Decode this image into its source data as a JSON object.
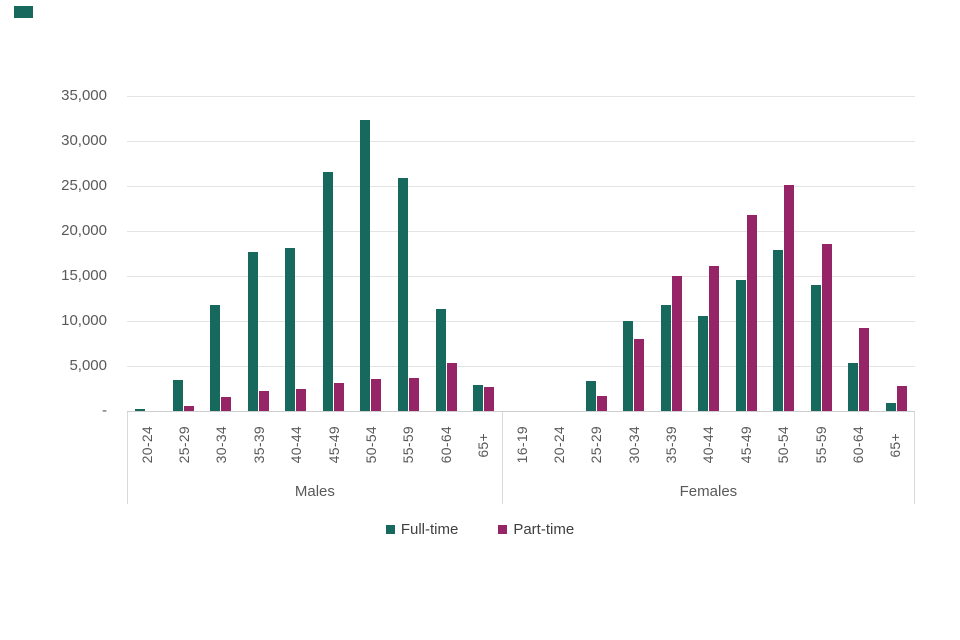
{
  "decoration": {
    "corner_mark_color": "#17695E"
  },
  "chart_data": {
    "type": "bar",
    "title": "",
    "xlabel": "",
    "ylabel": "",
    "ylim": [
      0,
      35000
    ],
    "ytick_interval": 5000,
    "ytick_labels_top_to_bottom": [
      "35,000",
      "30,000",
      "25,000",
      "20,000",
      "15,000",
      "10,000",
      "5,000",
      "-"
    ],
    "grid": true,
    "legend_position": "bottom-center",
    "colors": {
      "full_time": "#17695E",
      "part_time": "#962568"
    },
    "legend": [
      {
        "name": "Full-time",
        "color": "#17695E"
      },
      {
        "name": "Part-time",
        "color": "#962568"
      }
    ],
    "groups": [
      {
        "label": "Males",
        "categories": [
          "20-24",
          "25-29",
          "30-34",
          "35-39",
          "40-44",
          "45-49",
          "50-54",
          "55-59",
          "60-64",
          "65+"
        ],
        "series": [
          {
            "name": "Full-time",
            "values": [
              200,
              3400,
              11800,
              17700,
              18100,
              26600,
              32300,
              25900,
              11300,
              2900
            ]
          },
          {
            "name": "Part-time",
            "values": [
              0,
              500,
              1600,
              2200,
              2400,
              3100,
              3500,
              3700,
              5300,
              2700
            ]
          }
        ]
      },
      {
        "label": "Females",
        "categories": [
          "16-19",
          "20-24",
          "25-29",
          "30-34",
          "35-39",
          "40-44",
          "45-49",
          "50-54",
          "55-59",
          "60-64",
          "65+"
        ],
        "series": [
          {
            "name": "Full-time",
            "values": [
              0,
              0,
              3300,
              10000,
              11800,
              10600,
              14500,
              17900,
              14000,
              5300,
              900
            ]
          },
          {
            "name": "Part-time",
            "values": [
              0,
              0,
              1700,
              8000,
              15000,
              16100,
              21800,
              25100,
              18500,
              9200,
              2800
            ]
          }
        ]
      }
    ]
  }
}
